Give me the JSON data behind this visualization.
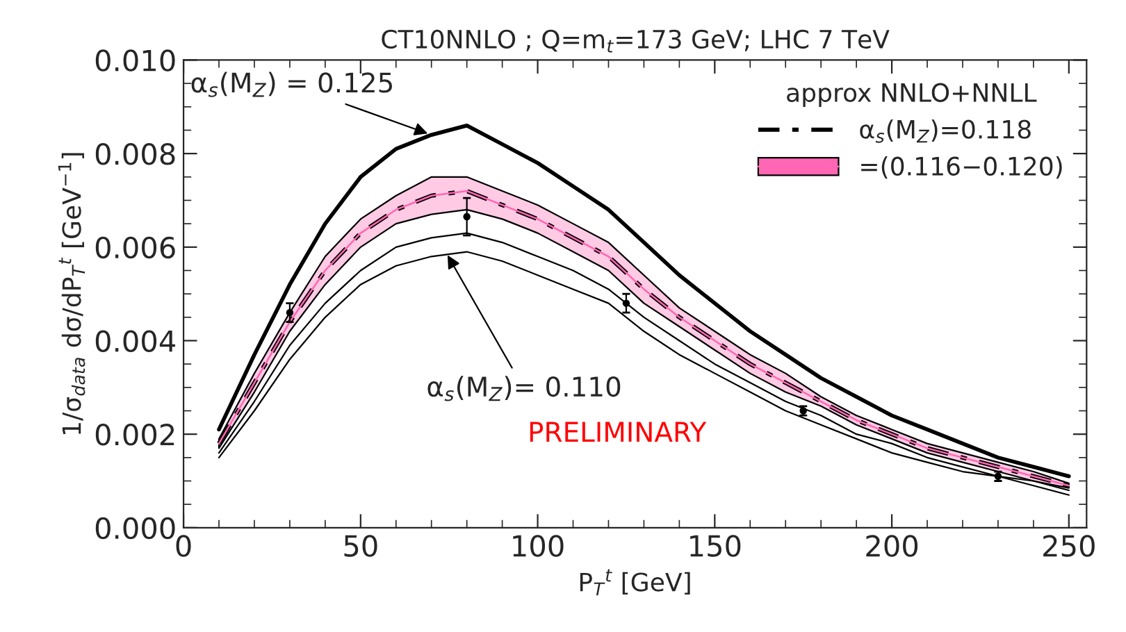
{
  "chart_data": {
    "type": "line",
    "title": "CT10NNLO ; Q=m$_{t}$=173 GeV; LHC 7 TeV",
    "xlabel": "P$_{T}$$^{t}$ [GeV]",
    "ylabel": "1/σ$_{data}$ dσ/dP$_{T}$$^{t}$ [GeV$^{−1}$]",
    "legend_title": "approx NNLO+NNLL",
    "legend": "top right",
    "grid": false,
    "x": [
      10,
      20,
      30,
      40,
      50,
      60,
      70,
      80,
      90,
      100,
      110,
      120,
      130,
      140,
      150,
      160,
      170,
      180,
      190,
      200,
      210,
      220,
      230,
      240,
      250
    ],
    "xlim": [
      0,
      255
    ],
    "xticks": [
      0,
      50,
      100,
      150,
      200,
      250
    ],
    "ylim": [
      0,
      0.01
    ],
    "yticks": [
      {
        "value": 0,
        "label": "0.000"
      },
      {
        "value": 0.002,
        "label": "0.002"
      },
      {
        "value": 0.004,
        "label": "0.004"
      },
      {
        "value": 0.006,
        "label": "0.006"
      },
      {
        "value": 0.008,
        "label": "0.008"
      },
      {
        "value": 0.01,
        "label": "0.010"
      }
    ],
    "series": [
      {
        "color": "#000000",
        "line_style": "solid",
        "values": [
          0.0021,
          0.0037,
          0.0052,
          0.0065,
          0.0075,
          0.0081,
          0.0084,
          0.0086,
          0.0082,
          0.0078,
          0.0073,
          0.0068,
          0.0061,
          0.0054,
          0.0048,
          0.0042,
          0.0037,
          0.0032,
          0.0028,
          0.0024,
          0.0021,
          0.0018,
          0.0015,
          0.0013,
          0.0011
        ]
      },
      {
        "name": "α$_{s}$(M$_{Z}$)=0.118",
        "color": "#000000",
        "line_style": "dashed",
        "values": [
          0.0018,
          0.0031,
          0.0044,
          0.0055,
          0.0063,
          0.0068,
          0.0071,
          0.0072,
          0.0069,
          0.0066,
          0.0062,
          0.0058,
          0.0051,
          0.0045,
          0.004,
          0.0035,
          0.0031,
          0.0027,
          0.0023,
          0.002,
          0.0017,
          0.0015,
          0.0013,
          0.0011,
          0.0009
        ]
      },
      {
        "name": "=(0.116−0.120)",
        "color": "#ff66b3",
        "line_style": "solid",
        "values": [
          0.0018,
          0.0031,
          0.0044,
          0.0055,
          0.0063,
          0.0068,
          0.0071,
          0.0072,
          0.0069,
          0.0066,
          0.0062,
          0.0058,
          0.0051,
          0.0045,
          0.004,
          0.0035,
          0.0031,
          0.0027,
          0.0023,
          0.002,
          0.0017,
          0.0015,
          0.0013,
          0.0011,
          0.0009
        ],
        "upper": [
          0.0019,
          0.0033,
          0.0046,
          0.0058,
          0.0066,
          0.0071,
          0.0075,
          0.0075,
          0.0072,
          0.0069,
          0.0065,
          0.0061,
          0.0054,
          0.0047,
          0.0042,
          0.0037,
          0.0033,
          0.0028,
          0.0024,
          0.0021,
          0.0018,
          0.0016,
          0.0014,
          0.0012,
          0.00095
        ],
        "lower": [
          0.0017,
          0.0029,
          0.0042,
          0.0052,
          0.006,
          0.0065,
          0.0067,
          0.0068,
          0.0066,
          0.0063,
          0.0059,
          0.0055,
          0.0048,
          0.0043,
          0.0038,
          0.0033,
          0.0029,
          0.0026,
          0.0022,
          0.0019,
          0.0016,
          0.0014,
          0.0012,
          0.001,
          0.00085
        ]
      },
      {
        "color": "#000000",
        "line_style": "solid",
        "values": [
          0.0016,
          0.0027,
          0.0039,
          0.0048,
          0.0055,
          0.006,
          0.0062,
          0.0063,
          0.0061,
          0.0058,
          0.0055,
          0.0051,
          0.0045,
          0.004,
          0.0035,
          0.0031,
          0.0027,
          0.0024,
          0.002,
          0.0018,
          0.0015,
          0.0013,
          0.0011,
          0.001,
          0.0008
        ]
      },
      {
        "color": "#000000",
        "line_style": "solid",
        "values": [
          0.0015,
          0.0025,
          0.0036,
          0.0045,
          0.0052,
          0.0056,
          0.0058,
          0.0059,
          0.0057,
          0.0054,
          0.0051,
          0.0048,
          0.0042,
          0.0037,
          0.0033,
          0.0029,
          0.0025,
          0.0022,
          0.0019,
          0.0016,
          0.0014,
          0.0012,
          0.0011,
          0.0009,
          0.0007
        ]
      },
      {
        "type": "scatter",
        "marker": "circle",
        "color": "#000000",
        "x": [
          30,
          80,
          125,
          175,
          230
        ],
        "values": [
          0.0046,
          0.00665,
          0.0048,
          0.0025,
          0.0011
        ],
        "errors": [
          0.0002,
          0.0004,
          0.0002,
          0.0001,
          0.0001
        ]
      }
    ],
    "annotations": [
      {
        "text": "α$_{s}$(M$_{Z}$) = 0.125",
        "x": 70,
        "y": 0.0084
      },
      {
        "text": "α$_{s}$(M$_{Z}$)= 0.110",
        "x": 74,
        "y": 0.0059
      },
      "PRELIMINARY"
    ]
  }
}
